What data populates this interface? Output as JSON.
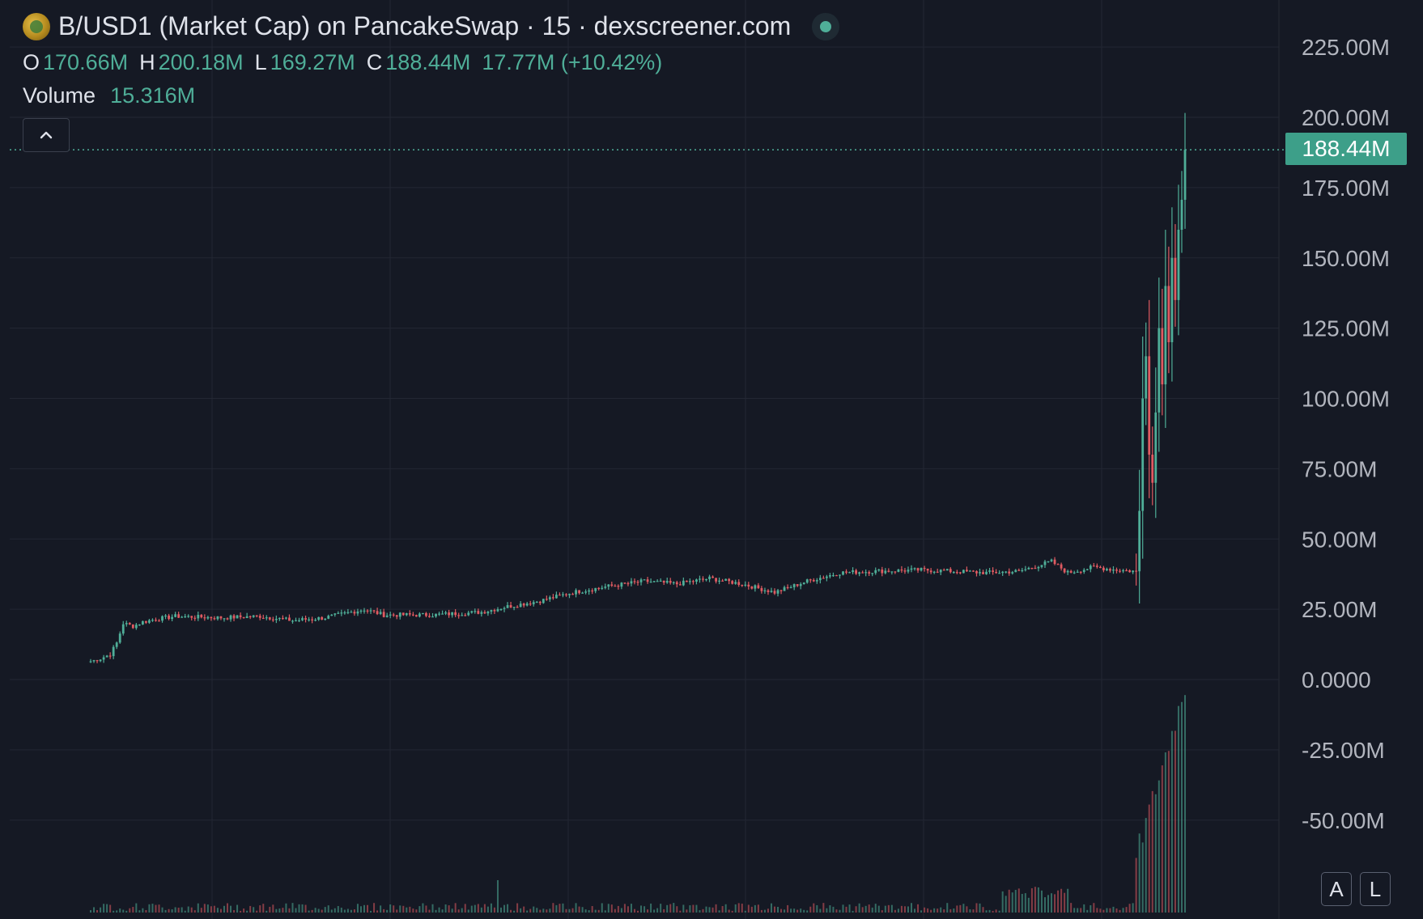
{
  "header": {
    "title": "B/USD1 (Market Cap) on PancakeSwap · 15 · dexscreener.com",
    "ohlc": {
      "o_label": "O",
      "o_value": "170.66M",
      "h_label": "H",
      "h_value": "200.18M",
      "l_label": "L",
      "l_value": "169.27M",
      "c_label": "C",
      "c_value": "188.44M",
      "change": "17.77M (+10.42%)"
    },
    "volume_label": "Volume",
    "volume_value": "15.316M"
  },
  "price_tag": "188.44M",
  "buttons": {
    "auto": "A",
    "log": "L"
  },
  "colors": {
    "background": "#151924",
    "up": "#4fae98",
    "down": "#e05a61",
    "grid": "#232733",
    "axis_text": "#b2b5be"
  },
  "icons": {
    "collapse": "chevron-up-icon",
    "status": "live-dot-icon",
    "logo": "token-logo-icon"
  },
  "chart_data": {
    "type": "candlestick",
    "y_axis": {
      "ticks": [
        "225.00M",
        "200.00M",
        "175.00M",
        "150.00M",
        "125.00M",
        "100.00M",
        "75.00M",
        "50.00M",
        "25.00M",
        "0.0000",
        "-25.00M",
        "-50.00M"
      ],
      "tick_values": [
        225,
        200,
        175,
        150,
        125,
        100,
        75,
        50,
        25,
        0,
        -25,
        -50
      ],
      "unit": "M",
      "range": [
        -75,
        238
      ]
    },
    "current_close": 188.44,
    "series_anchors": [
      [
        0,
        6.5
      ],
      [
        3,
        7.5
      ],
      [
        6,
        9
      ],
      [
        8,
        13
      ],
      [
        10,
        20
      ],
      [
        13,
        19
      ],
      [
        16,
        20.5
      ],
      [
        20,
        21.5
      ],
      [
        26,
        22.5
      ],
      [
        40,
        22
      ],
      [
        52,
        22.5
      ],
      [
        62,
        21
      ],
      [
        72,
        22
      ],
      [
        80,
        24
      ],
      [
        84,
        25
      ],
      [
        90,
        23
      ],
      [
        105,
        23
      ],
      [
        120,
        24
      ],
      [
        128,
        26
      ],
      [
        138,
        28
      ],
      [
        148,
        31
      ],
      [
        158,
        33
      ],
      [
        170,
        35
      ],
      [
        180,
        34
      ],
      [
        190,
        36
      ],
      [
        200,
        34
      ],
      [
        210,
        31
      ],
      [
        220,
        35
      ],
      [
        230,
        38
      ],
      [
        240,
        38.5
      ],
      [
        255,
        39
      ],
      [
        265,
        38.5
      ],
      [
        275,
        38
      ],
      [
        285,
        38.5
      ],
      [
        295,
        42
      ],
      [
        300,
        38
      ],
      [
        308,
        40
      ],
      [
        315,
        39
      ],
      [
        321,
        38.5
      ],
      [
        322,
        60
      ],
      [
        323,
        100
      ],
      [
        324,
        115
      ],
      [
        325,
        80
      ],
      [
        326,
        70
      ],
      [
        327,
        95
      ],
      [
        328,
        125
      ],
      [
        329,
        105
      ],
      [
        330,
        140
      ],
      [
        331,
        120
      ],
      [
        332,
        150
      ],
      [
        333,
        135
      ],
      [
        334,
        160
      ],
      [
        335,
        170.66
      ],
      [
        336,
        188.44
      ]
    ],
    "volume_hint": "volume bars peak in the final sessions",
    "grid": true
  }
}
